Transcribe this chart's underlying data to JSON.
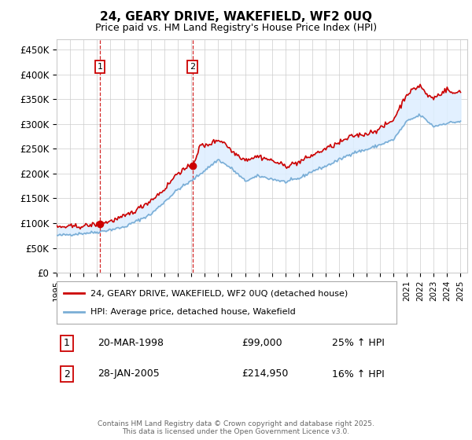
{
  "title": "24, GEARY DRIVE, WAKEFIELD, WF2 0UQ",
  "subtitle": "Price paid vs. HM Land Registry's House Price Index (HPI)",
  "ylabel_ticks": [
    "£0",
    "£50K",
    "£100K",
    "£150K",
    "£200K",
    "£250K",
    "£300K",
    "£350K",
    "£400K",
    "£450K"
  ],
  "ytick_values": [
    0,
    50000,
    100000,
    150000,
    200000,
    250000,
    300000,
    350000,
    400000,
    450000
  ],
  "ylim": [
    0,
    470000
  ],
  "xlim_start": 1995.0,
  "xlim_end": 2025.5,
  "purchase1": {
    "date_num": 1998.22,
    "price": 99000,
    "label": "1",
    "date_str": "20-MAR-1998",
    "price_str": "£99,000",
    "hpi_str": "25% ↑ HPI"
  },
  "purchase2": {
    "date_num": 2005.08,
    "price": 214950,
    "label": "2",
    "date_str": "28-JAN-2005",
    "price_str": "£214,950",
    "hpi_str": "16% ↑ HPI"
  },
  "line1_color": "#cc0000",
  "line2_color": "#7aaed6",
  "fill_color": "#ddeeff",
  "grid_color": "#cccccc",
  "background_color": "#ffffff",
  "dashed_line_color": "#cc0000",
  "box_color": "#cc0000",
  "footer": "Contains HM Land Registry data © Crown copyright and database right 2025.\nThis data is licensed under the Open Government Licence v3.0.",
  "legend1": "24, GEARY DRIVE, WAKEFIELD, WF2 0UQ (detached house)",
  "legend2": "HPI: Average price, detached house, Wakefield",
  "xtick_years": [
    1995,
    1996,
    1997,
    1998,
    1999,
    2000,
    2001,
    2002,
    2003,
    2004,
    2005,
    2006,
    2007,
    2008,
    2009,
    2010,
    2011,
    2012,
    2013,
    2014,
    2015,
    2016,
    2017,
    2018,
    2019,
    2020,
    2021,
    2022,
    2023,
    2024,
    2025
  ],
  "hpi_anchors_x": [
    1995,
    1998,
    2000,
    2002,
    2004,
    2005,
    2007,
    2008,
    2009,
    2010,
    2012,
    2013,
    2014,
    2015,
    2016,
    2017,
    2018,
    2019,
    2020,
    2021,
    2022,
    2023,
    2024,
    2025
  ],
  "hpi_anchors_y": [
    75000,
    82000,
    92000,
    118000,
    168000,
    185000,
    228000,
    210000,
    185000,
    195000,
    183000,
    190000,
    205000,
    215000,
    228000,
    242000,
    248000,
    258000,
    268000,
    305000,
    318000,
    295000,
    302000,
    305000
  ],
  "red_anchors_x": [
    1995,
    1997,
    1998.22,
    1999,
    2000,
    2001,
    2002,
    2003,
    2004,
    2005.08,
    2005.7,
    2006,
    2007,
    2007.5,
    2008,
    2009,
    2010,
    2011,
    2012,
    2013,
    2014,
    2015,
    2016,
    2017,
    2018,
    2019,
    2020,
    2021,
    2022,
    2022.5,
    2023,
    2024,
    2024.5,
    2025
  ],
  "red_anchors_y": [
    92000,
    94000,
    99000,
    104000,
    113000,
    128000,
    146000,
    168000,
    202000,
    214950,
    258000,
    255000,
    268000,
    262000,
    245000,
    228000,
    235000,
    226000,
    215000,
    223000,
    237000,
    250000,
    262000,
    276000,
    280000,
    290000,
    308000,
    360000,
    378000,
    358000,
    352000,
    370000,
    360000,
    368000
  ]
}
